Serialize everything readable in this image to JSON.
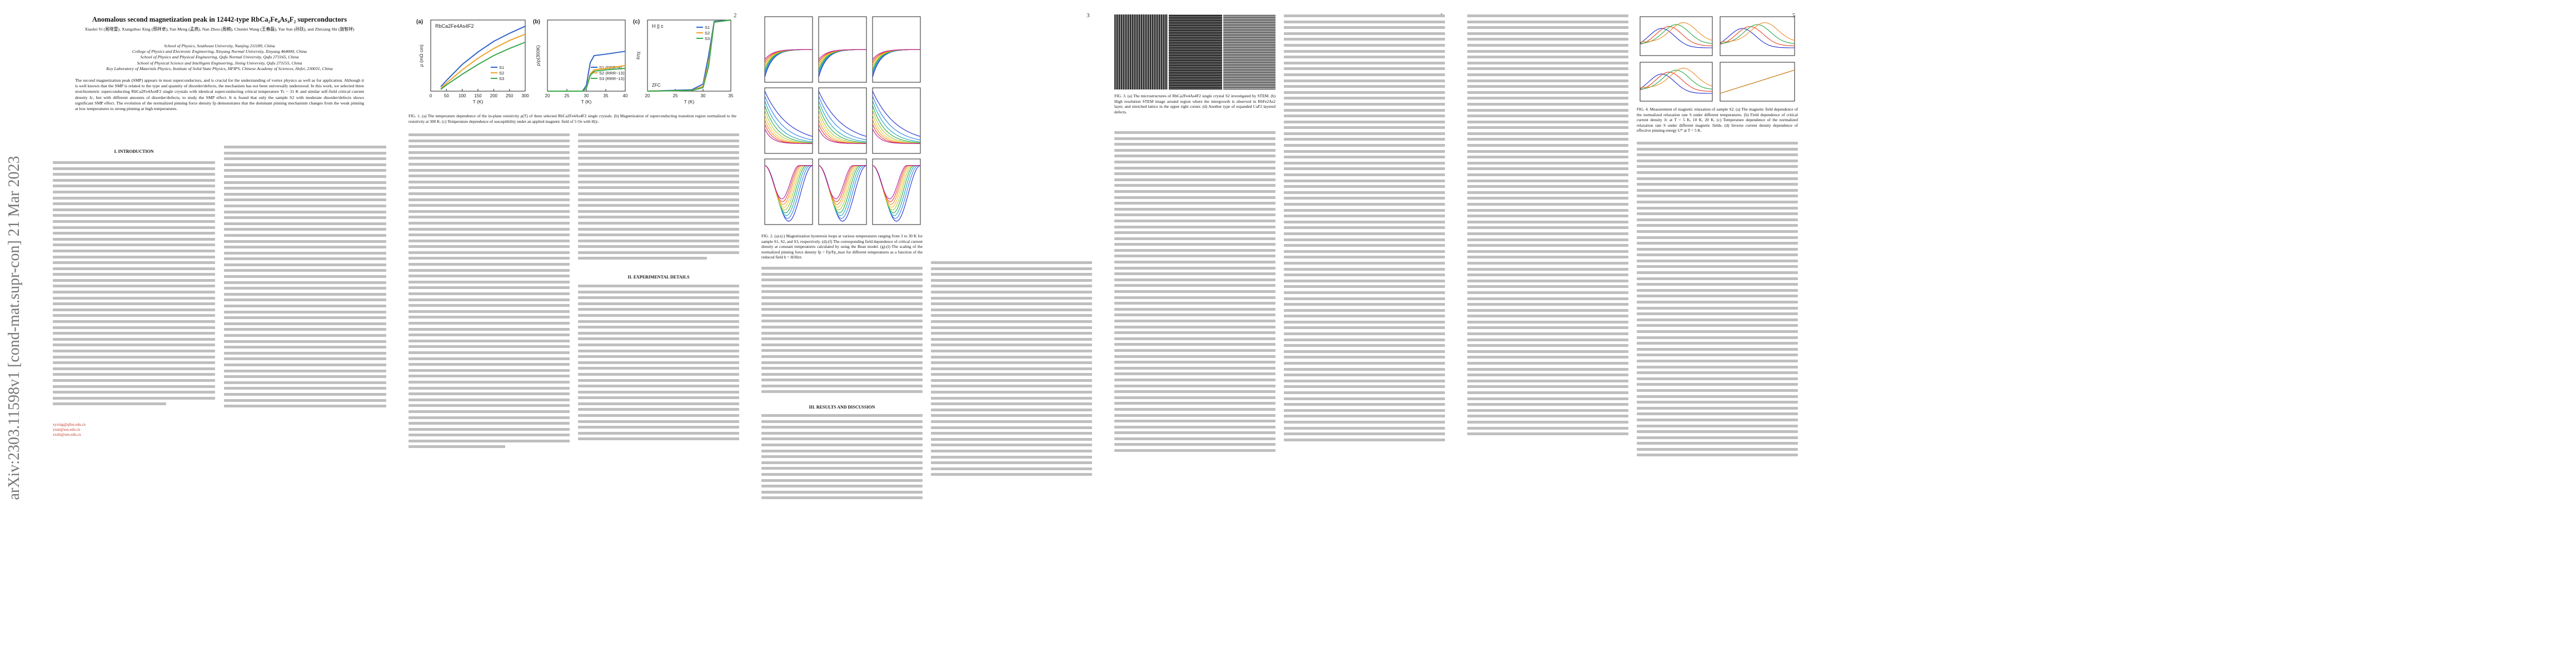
{
  "sidebar": {
    "arxiv_id": "arXiv:2303.11598v1  [cond-mat.supr-con]  21 Mar 2023"
  },
  "pages": [
    {
      "number": "",
      "title": "Anomalous second magnetization peak in 12442-type RbCa₂Fe₄As₄F₂ superconductors",
      "authors": "Xiaolei Yi (易晓雷), Xiangzhuo Xing (邢祥卓), Yan Meng (孟燕), Nan Zhou (周楠), Chunlei Wang (王春磊), Yue Sun (孙跃), and Zhixiang Shi (施智祥)",
      "affiliations": [
        "School of Physics, Southeast University, Nanjing 211189, China",
        "College of Physics and Electronic Engineering, Xinyang Normal University, Xinyang 464000, China",
        "School of Physics and Physical Engineering, Qufu Normal University, Qufu 273165, China",
        "School of Physical Science and Intelligent Engineering, Jining University, Qufu 273155, China",
        "Key Laboratory of Materials Physics, Institute of Solid State Physics, HFIPS, Chinese Academy of Sciences, Hefei, 230031, China"
      ],
      "abstract": "The second magnetization peak (SMP) appears in most superconductors, and is crucial for the understanding of vortex physics as well as for application. Although it is well known that the SMP is related to the type and quantity of disorder/defects, the mechanism has not been universally understood. In this work, we selected three stoichiometric superconducting RbCa2Fe4As4F2 single crystals with identical superconducting critical temperature Tc ~ 31 K and similar self-field critical current density Jc, but with different amounts of disorder/defects, to study the SMP effect. It is found that only the sample S2 with moderate disorder/defects shows significant SMP effect. The evolution of the normalized pinning force density fp demonstrates that the dominant pinning mechanism changes from the weak pinning at low temperatures to strong pinning at high temperatures.",
      "section_intro": "I. INTRODUCTION",
      "section_exp": "II. EXPERIMENTAL DETAILS",
      "footnotes": [
        "xyxing@qfnu.edu.cn",
        "ysun@seu.edu.cn",
        "zxshi@seu.edu.cn"
      ]
    },
    {
      "number": "2",
      "fig1_caption": "FIG. 1. (a) The temperature dependence of the in-plane resistivity ρ(T) of three selected RbCa2Fe4As4F2 single crystals. (b) Magnetization of superconducting transition region normalized to the resistivity at 300 K. (c) Temperature dependence of susceptibility under an applied magnetic field of 5 Oe with H||c."
    },
    {
      "number": "3",
      "fig2_caption": "FIG. 2. (a)-(c) Magnetization hysteresis loops at various temperatures ranging from 3 to 30 K for sample S1, S2, and S3, respectively. (d)-(f) The corresponding field dependence of critical current density at constant temperatures calculated by using the Bean model. (g)-(i) The scaling of the normalized pinning force density fp = Fp/Fp_max for different temperatures as a function of the reduced field h = H/Hirr.",
      "section_results": "III. RESULTS AND DISCUSSION"
    },
    {
      "number": "4",
      "fig3_caption": "FIG. 3. (a) The microstructures of RbCa2Fe4As4F2 single crystal S2 investigated by STEM. (b) High resolution STEM image around region where the intergrowth is observed in RbFe2As2 layer, and stretched lattice in the upper right corner. (d) Another type of expanded CaF2 layered defects."
    },
    {
      "number": "5",
      "fig4_caption": "FIG. 4. Measurement of magnetic relaxation of sample S2. (a) The magnetic field dependence of the normalized relaxation rate S under different temperatures. (b) Field dependence of critical current density Jc at T = 5 K, 10 K, 20 K. (c) Temperature dependence of the normalized relaxation rate S under different magnetic fields. (d) Inverse current density dependence of effective pinning energy U* at T = 5 K."
    }
  ],
  "chart_data": [
    {
      "panel": "1a",
      "type": "line",
      "annotation": "RbCa2Fe4As4F2",
      "xlabel": "T (K)",
      "ylabel": "ρ (mΩ cm)",
      "ylim": [
        0,
        0.8
      ],
      "xlim": [
        0,
        300
      ],
      "xticks": [
        "0",
        "50",
        "100",
        "150",
        "200",
        "250",
        "300"
      ],
      "series": [
        {
          "name": "S1",
          "color": "#2f63c9",
          "x": [
            32,
            50,
            100,
            150,
            200,
            250,
            300
          ],
          "y": [
            0.05,
            0.12,
            0.3,
            0.44,
            0.56,
            0.65,
            0.73
          ]
        },
        {
          "name": "S2",
          "color": "#f2a22a",
          "x": [
            32,
            50,
            100,
            150,
            200,
            250,
            300
          ],
          "y": [
            0.03,
            0.09,
            0.24,
            0.37,
            0.48,
            0.57,
            0.64
          ]
        },
        {
          "name": "S3",
          "color": "#39a84a",
          "x": [
            32,
            50,
            100,
            150,
            200,
            250,
            300
          ],
          "y": [
            0.02,
            0.07,
            0.19,
            0.3,
            0.4,
            0.48,
            0.55
          ]
        }
      ]
    },
    {
      "panel": "1b",
      "type": "line",
      "xlabel": "T (K)",
      "ylabel": "ρ/ρ(300K)",
      "xlim": [
        20,
        40
      ],
      "ylim": [
        0,
        0.25
      ],
      "xticks": [
        "20",
        "25",
        "30",
        "35",
        "40"
      ],
      "series": [
        {
          "name": "S1 (RRR~8)",
          "color": "#2f63c9",
          "x": [
            20,
            29,
            30,
            31,
            32,
            35,
            40
          ],
          "y": [
            0,
            0,
            0.02,
            0.1,
            0.125,
            0.13,
            0.14
          ]
        },
        {
          "name": "S2 (RRR~13)",
          "color": "#f2a22a",
          "x": [
            20,
            29,
            30,
            31,
            32,
            35,
            40
          ],
          "y": [
            0,
            0,
            0.01,
            0.06,
            0.075,
            0.08,
            0.09
          ]
        },
        {
          "name": "S3 (RRR~13)",
          "color": "#39a84a",
          "x": [
            20,
            29,
            30,
            31,
            32,
            35,
            40
          ],
          "y": [
            0,
            0,
            0.01,
            0.055,
            0.07,
            0.075,
            0.08
          ]
        }
      ]
    },
    {
      "panel": "1c",
      "type": "line",
      "annotation": "H || c",
      "legend_note": "ZFC",
      "xlabel": "T (K)",
      "ylabel": "4πχ",
      "xlim": [
        20,
        35
      ],
      "ylim": [
        -1.0,
        0
      ],
      "xticks": [
        "20",
        "25",
        "30",
        "35"
      ],
      "series": [
        {
          "name": "S1",
          "color": "#2f63c9",
          "x": [
            20,
            28,
            30,
            31,
            32,
            35
          ],
          "y": [
            -1.0,
            -0.98,
            -0.9,
            -0.5,
            -0.02,
            0
          ]
        },
        {
          "name": "S2",
          "color": "#f2a22a",
          "x": [
            20,
            28,
            30,
            31,
            32,
            35
          ],
          "y": [
            -1.0,
            -0.99,
            -0.93,
            -0.6,
            -0.03,
            0
          ]
        },
        {
          "name": "S3",
          "color": "#39a84a",
          "x": [
            20,
            28,
            30,
            31,
            32,
            35
          ],
          "y": [
            -1.0,
            -0.99,
            -0.95,
            -0.65,
            -0.03,
            0
          ]
        }
      ]
    }
  ]
}
